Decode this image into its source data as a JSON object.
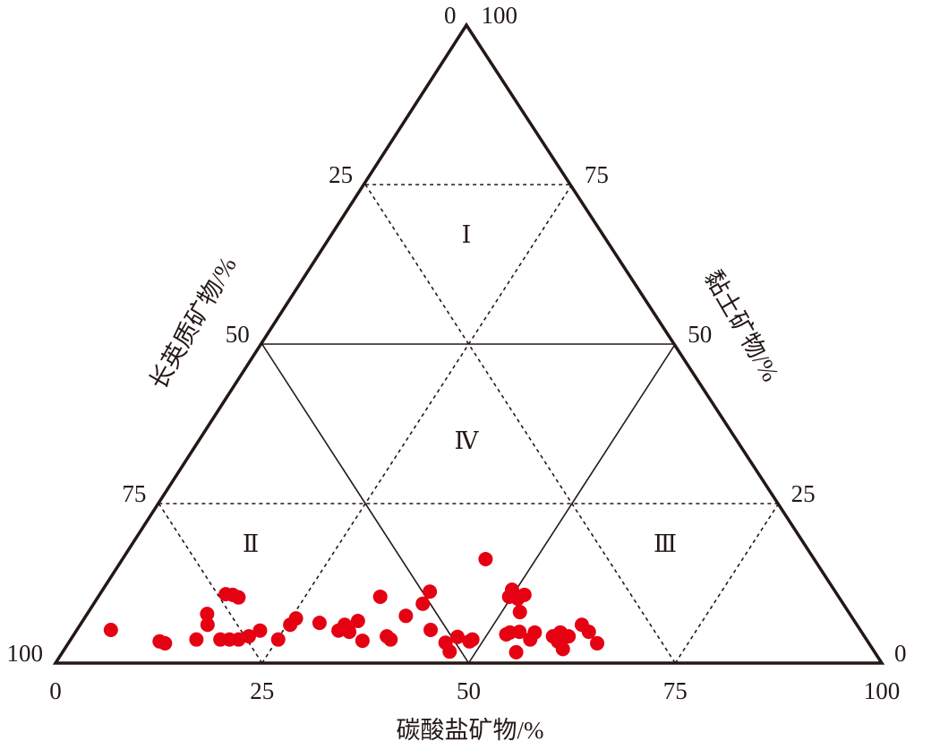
{
  "chart_data": {
    "type": "ternary",
    "range": [
      0,
      100
    ],
    "bottom_axis": {
      "label": "碳酸盐矿物/%",
      "ticks": [
        0,
        25,
        50,
        75,
        100
      ]
    },
    "left_axis": {
      "label": "长英质矿物/%",
      "ticks": [
        0,
        25,
        50,
        75,
        100
      ]
    },
    "right_axis": {
      "label": "黏土矿物/%",
      "ticks": [
        100,
        75,
        50,
        25,
        0
      ]
    },
    "solid_grid": [
      50
    ],
    "regions": [
      "Ⅰ",
      "Ⅱ",
      "Ⅲ",
      "Ⅳ"
    ],
    "points": {
      "color": "#e50012",
      "carbonate": [
        4.1,
        10.9,
        11.7,
        15.2,
        14.5,
        15.4,
        15.2,
        16.1,
        17.0,
        18.1,
        19.2,
        20.3,
        21.3,
        22.2,
        25.1,
        25.4,
        25.6,
        28.8,
        31.7,
        32.0,
        33.1,
        33.3,
        35.4,
        34.1,
        38.0,
        38.7,
        38.7,
        39.8,
        39.7,
        42.8,
        45.6,
        46.8,
        46.6,
        48.4,
        48.6,
        43.9,
        52.3,
        52.6,
        49.7,
        49.5,
        50.9,
        51.4,
        52.2,
        54.9,
        53.7,
        55.6,
        55.6,
        58.1,
        58.7,
        60.3,
        60.0,
        60.7,
        62.1,
        64.0,
        59.1
      ],
      "clay": [
        5.2,
        3.4,
        3.1,
        3.7,
        7.7,
        6.0,
        10.8,
        10.7,
        10.3,
        3.7,
        3.7,
        3.7,
        4.2,
        5.1,
        3.7,
        6.0,
        7.0,
        6.3,
        5.1,
        6.0,
        4.9,
        6.6,
        3.5,
        10.4,
        4.2,
        3.7,
        7.4,
        9.3,
        11.2,
        5.2,
        3.2,
        1.8,
        4.1,
        3.4,
        3.7,
        16.3,
        4.5,
        4.8,
        10.4,
        11.5,
        10.1,
        10.7,
        8.0,
        1.7,
        4.9,
        3.7,
        4.8,
        4.2,
        4.8,
        2.2,
        4.2,
        6.0,
        4.9,
        3.1,
        3.4
      ]
    }
  }
}
